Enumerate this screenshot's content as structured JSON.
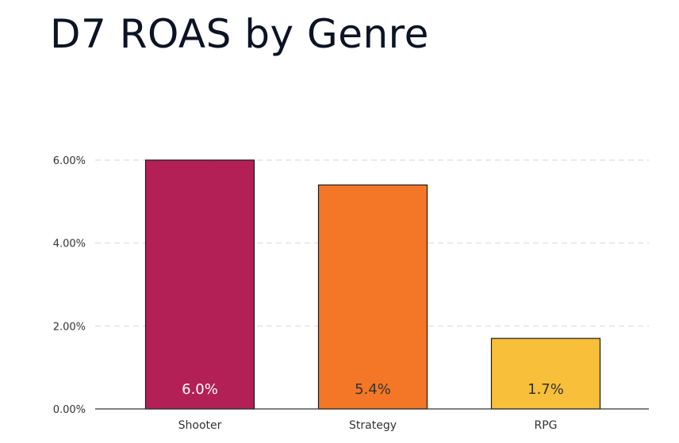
{
  "chart_data": {
    "type": "bar",
    "title": "D7 ROAS by Genre",
    "categories": [
      "Shooter",
      "Strategy",
      "RPG"
    ],
    "values": [
      6.0,
      5.4,
      1.7
    ],
    "data_labels": [
      "6.0%",
      "5.4%",
      "1.7%"
    ],
    "bar_colors": [
      "#b22055",
      "#f37726",
      "#f8bf3a"
    ],
    "label_colors": [
      "#ffffff",
      "#333333",
      "#333333"
    ],
    "y_ticks": [
      0,
      2,
      4,
      6
    ],
    "y_tick_labels": [
      "0.00%",
      "2.00%",
      "4.00%",
      "6.00%"
    ],
    "ylim": [
      0,
      6
    ],
    "grid": true,
    "grid_color": "#d9dce6",
    "legend": "none"
  }
}
